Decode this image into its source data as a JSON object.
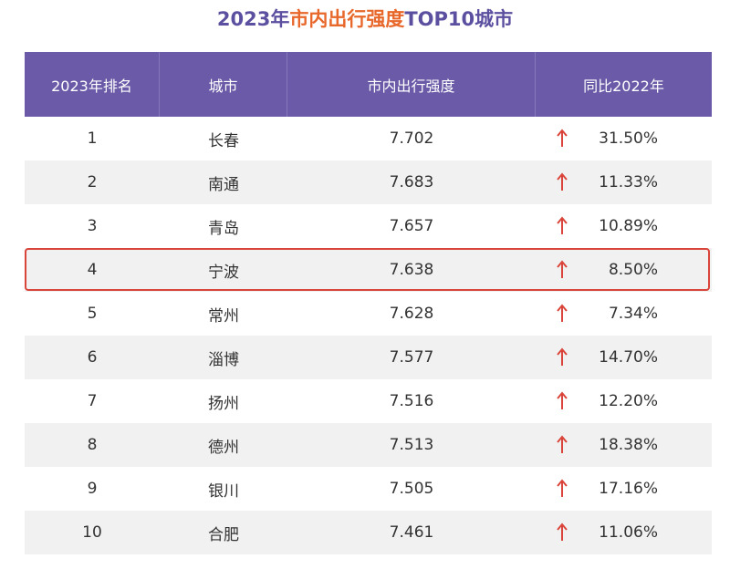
{
  "title": {
    "part_a": "2023年",
    "part_b": "市内出行强度",
    "part_c": "TOP10城市"
  },
  "colors": {
    "header_bg": "#6a5aa7",
    "title_purple": "#5b4fa0",
    "title_orange": "#e8672a",
    "arrow_red": "#d9453a",
    "highlight_border": "#d9453a",
    "alt_row_bg": "#f1f1f1"
  },
  "icons": {
    "trend": "up-arrow-icon"
  },
  "chart_data": {
    "type": "table",
    "title": "2023年市内出行强度TOP10城市",
    "columns": [
      "2023年排名",
      "城市",
      "市内出行强度",
      "同比2022年"
    ],
    "rows": [
      {
        "rank": "1",
        "city": "长春",
        "intensity": "7.702",
        "yoy": "31.50%"
      },
      {
        "rank": "2",
        "city": "南通",
        "intensity": "7.683",
        "yoy": "11.33%"
      },
      {
        "rank": "3",
        "city": "青岛",
        "intensity": "7.657",
        "yoy": "10.89%"
      },
      {
        "rank": "4",
        "city": "宁波",
        "intensity": "7.638",
        "yoy": "8.50%",
        "highlighted": true
      },
      {
        "rank": "5",
        "city": "常州",
        "intensity": "7.628",
        "yoy": "7.34%"
      },
      {
        "rank": "6",
        "city": "淄博",
        "intensity": "7.577",
        "yoy": "14.70%"
      },
      {
        "rank": "7",
        "city": "扬州",
        "intensity": "7.516",
        "yoy": "12.20%"
      },
      {
        "rank": "8",
        "city": "德州",
        "intensity": "7.513",
        "yoy": "18.38%"
      },
      {
        "rank": "9",
        "city": "银川",
        "intensity": "7.505",
        "yoy": "17.16%"
      },
      {
        "rank": "10",
        "city": "合肥",
        "intensity": "7.461",
        "yoy": "11.06%"
      }
    ]
  }
}
